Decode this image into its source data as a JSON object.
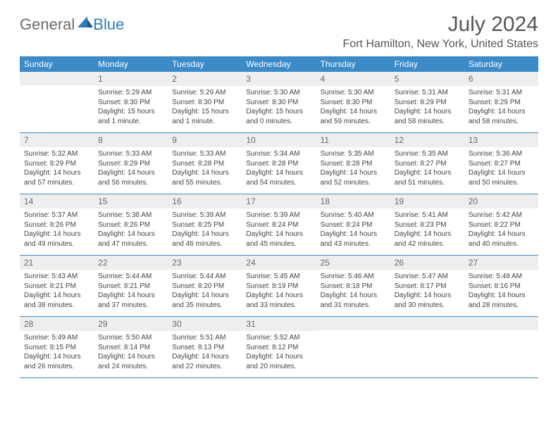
{
  "logo": {
    "text1": "General",
    "text2": "Blue"
  },
  "title": "July 2024",
  "location": "Fort Hamilton, New York, United States",
  "header_bg": "#3b8bc9",
  "daynum_bg": "#eeeeee",
  "dayHeaders": [
    "Sunday",
    "Monday",
    "Tuesday",
    "Wednesday",
    "Thursday",
    "Friday",
    "Saturday"
  ],
  "weeks": [
    [
      {
        "n": "",
        "sr": "",
        "ss": "",
        "dl": ""
      },
      {
        "n": "1",
        "sr": "Sunrise: 5:29 AM",
        "ss": "Sunset: 8:30 PM",
        "dl": "Daylight: 15 hours and 1 minute."
      },
      {
        "n": "2",
        "sr": "Sunrise: 5:29 AM",
        "ss": "Sunset: 8:30 PM",
        "dl": "Daylight: 15 hours and 1 minute."
      },
      {
        "n": "3",
        "sr": "Sunrise: 5:30 AM",
        "ss": "Sunset: 8:30 PM",
        "dl": "Daylight: 15 hours and 0 minutes."
      },
      {
        "n": "4",
        "sr": "Sunrise: 5:30 AM",
        "ss": "Sunset: 8:30 PM",
        "dl": "Daylight: 14 hours and 59 minutes."
      },
      {
        "n": "5",
        "sr": "Sunrise: 5:31 AM",
        "ss": "Sunset: 8:29 PM",
        "dl": "Daylight: 14 hours and 58 minutes."
      },
      {
        "n": "6",
        "sr": "Sunrise: 5:31 AM",
        "ss": "Sunset: 8:29 PM",
        "dl": "Daylight: 14 hours and 58 minutes."
      }
    ],
    [
      {
        "n": "7",
        "sr": "Sunrise: 5:32 AM",
        "ss": "Sunset: 8:29 PM",
        "dl": "Daylight: 14 hours and 57 minutes."
      },
      {
        "n": "8",
        "sr": "Sunrise: 5:33 AM",
        "ss": "Sunset: 8:29 PM",
        "dl": "Daylight: 14 hours and 56 minutes."
      },
      {
        "n": "9",
        "sr": "Sunrise: 5:33 AM",
        "ss": "Sunset: 8:28 PM",
        "dl": "Daylight: 14 hours and 55 minutes."
      },
      {
        "n": "10",
        "sr": "Sunrise: 5:34 AM",
        "ss": "Sunset: 8:28 PM",
        "dl": "Daylight: 14 hours and 54 minutes."
      },
      {
        "n": "11",
        "sr": "Sunrise: 5:35 AM",
        "ss": "Sunset: 8:28 PM",
        "dl": "Daylight: 14 hours and 52 minutes."
      },
      {
        "n": "12",
        "sr": "Sunrise: 5:35 AM",
        "ss": "Sunset: 8:27 PM",
        "dl": "Daylight: 14 hours and 51 minutes."
      },
      {
        "n": "13",
        "sr": "Sunrise: 5:36 AM",
        "ss": "Sunset: 8:27 PM",
        "dl": "Daylight: 14 hours and 50 minutes."
      }
    ],
    [
      {
        "n": "14",
        "sr": "Sunrise: 5:37 AM",
        "ss": "Sunset: 8:26 PM",
        "dl": "Daylight: 14 hours and 49 minutes."
      },
      {
        "n": "15",
        "sr": "Sunrise: 5:38 AM",
        "ss": "Sunset: 8:26 PM",
        "dl": "Daylight: 14 hours and 47 minutes."
      },
      {
        "n": "16",
        "sr": "Sunrise: 5:39 AM",
        "ss": "Sunset: 8:25 PM",
        "dl": "Daylight: 14 hours and 46 minutes."
      },
      {
        "n": "17",
        "sr": "Sunrise: 5:39 AM",
        "ss": "Sunset: 8:24 PM",
        "dl": "Daylight: 14 hours and 45 minutes."
      },
      {
        "n": "18",
        "sr": "Sunrise: 5:40 AM",
        "ss": "Sunset: 8:24 PM",
        "dl": "Daylight: 14 hours and 43 minutes."
      },
      {
        "n": "19",
        "sr": "Sunrise: 5:41 AM",
        "ss": "Sunset: 8:23 PM",
        "dl": "Daylight: 14 hours and 42 minutes."
      },
      {
        "n": "20",
        "sr": "Sunrise: 5:42 AM",
        "ss": "Sunset: 8:22 PM",
        "dl": "Daylight: 14 hours and 40 minutes."
      }
    ],
    [
      {
        "n": "21",
        "sr": "Sunrise: 5:43 AM",
        "ss": "Sunset: 8:21 PM",
        "dl": "Daylight: 14 hours and 38 minutes."
      },
      {
        "n": "22",
        "sr": "Sunrise: 5:44 AM",
        "ss": "Sunset: 8:21 PM",
        "dl": "Daylight: 14 hours and 37 minutes."
      },
      {
        "n": "23",
        "sr": "Sunrise: 5:44 AM",
        "ss": "Sunset: 8:20 PM",
        "dl": "Daylight: 14 hours and 35 minutes."
      },
      {
        "n": "24",
        "sr": "Sunrise: 5:45 AM",
        "ss": "Sunset: 8:19 PM",
        "dl": "Daylight: 14 hours and 33 minutes."
      },
      {
        "n": "25",
        "sr": "Sunrise: 5:46 AM",
        "ss": "Sunset: 8:18 PM",
        "dl": "Daylight: 14 hours and 31 minutes."
      },
      {
        "n": "26",
        "sr": "Sunrise: 5:47 AM",
        "ss": "Sunset: 8:17 PM",
        "dl": "Daylight: 14 hours and 30 minutes."
      },
      {
        "n": "27",
        "sr": "Sunrise: 5:48 AM",
        "ss": "Sunset: 8:16 PM",
        "dl": "Daylight: 14 hours and 28 minutes."
      }
    ],
    [
      {
        "n": "28",
        "sr": "Sunrise: 5:49 AM",
        "ss": "Sunset: 8:15 PM",
        "dl": "Daylight: 14 hours and 26 minutes."
      },
      {
        "n": "29",
        "sr": "Sunrise: 5:50 AM",
        "ss": "Sunset: 8:14 PM",
        "dl": "Daylight: 14 hours and 24 minutes."
      },
      {
        "n": "30",
        "sr": "Sunrise: 5:51 AM",
        "ss": "Sunset: 8:13 PM",
        "dl": "Daylight: 14 hours and 22 minutes."
      },
      {
        "n": "31",
        "sr": "Sunrise: 5:52 AM",
        "ss": "Sunset: 8:12 PM",
        "dl": "Daylight: 14 hours and 20 minutes."
      },
      {
        "n": "",
        "sr": "",
        "ss": "",
        "dl": ""
      },
      {
        "n": "",
        "sr": "",
        "ss": "",
        "dl": ""
      },
      {
        "n": "",
        "sr": "",
        "ss": "",
        "dl": ""
      }
    ]
  ]
}
